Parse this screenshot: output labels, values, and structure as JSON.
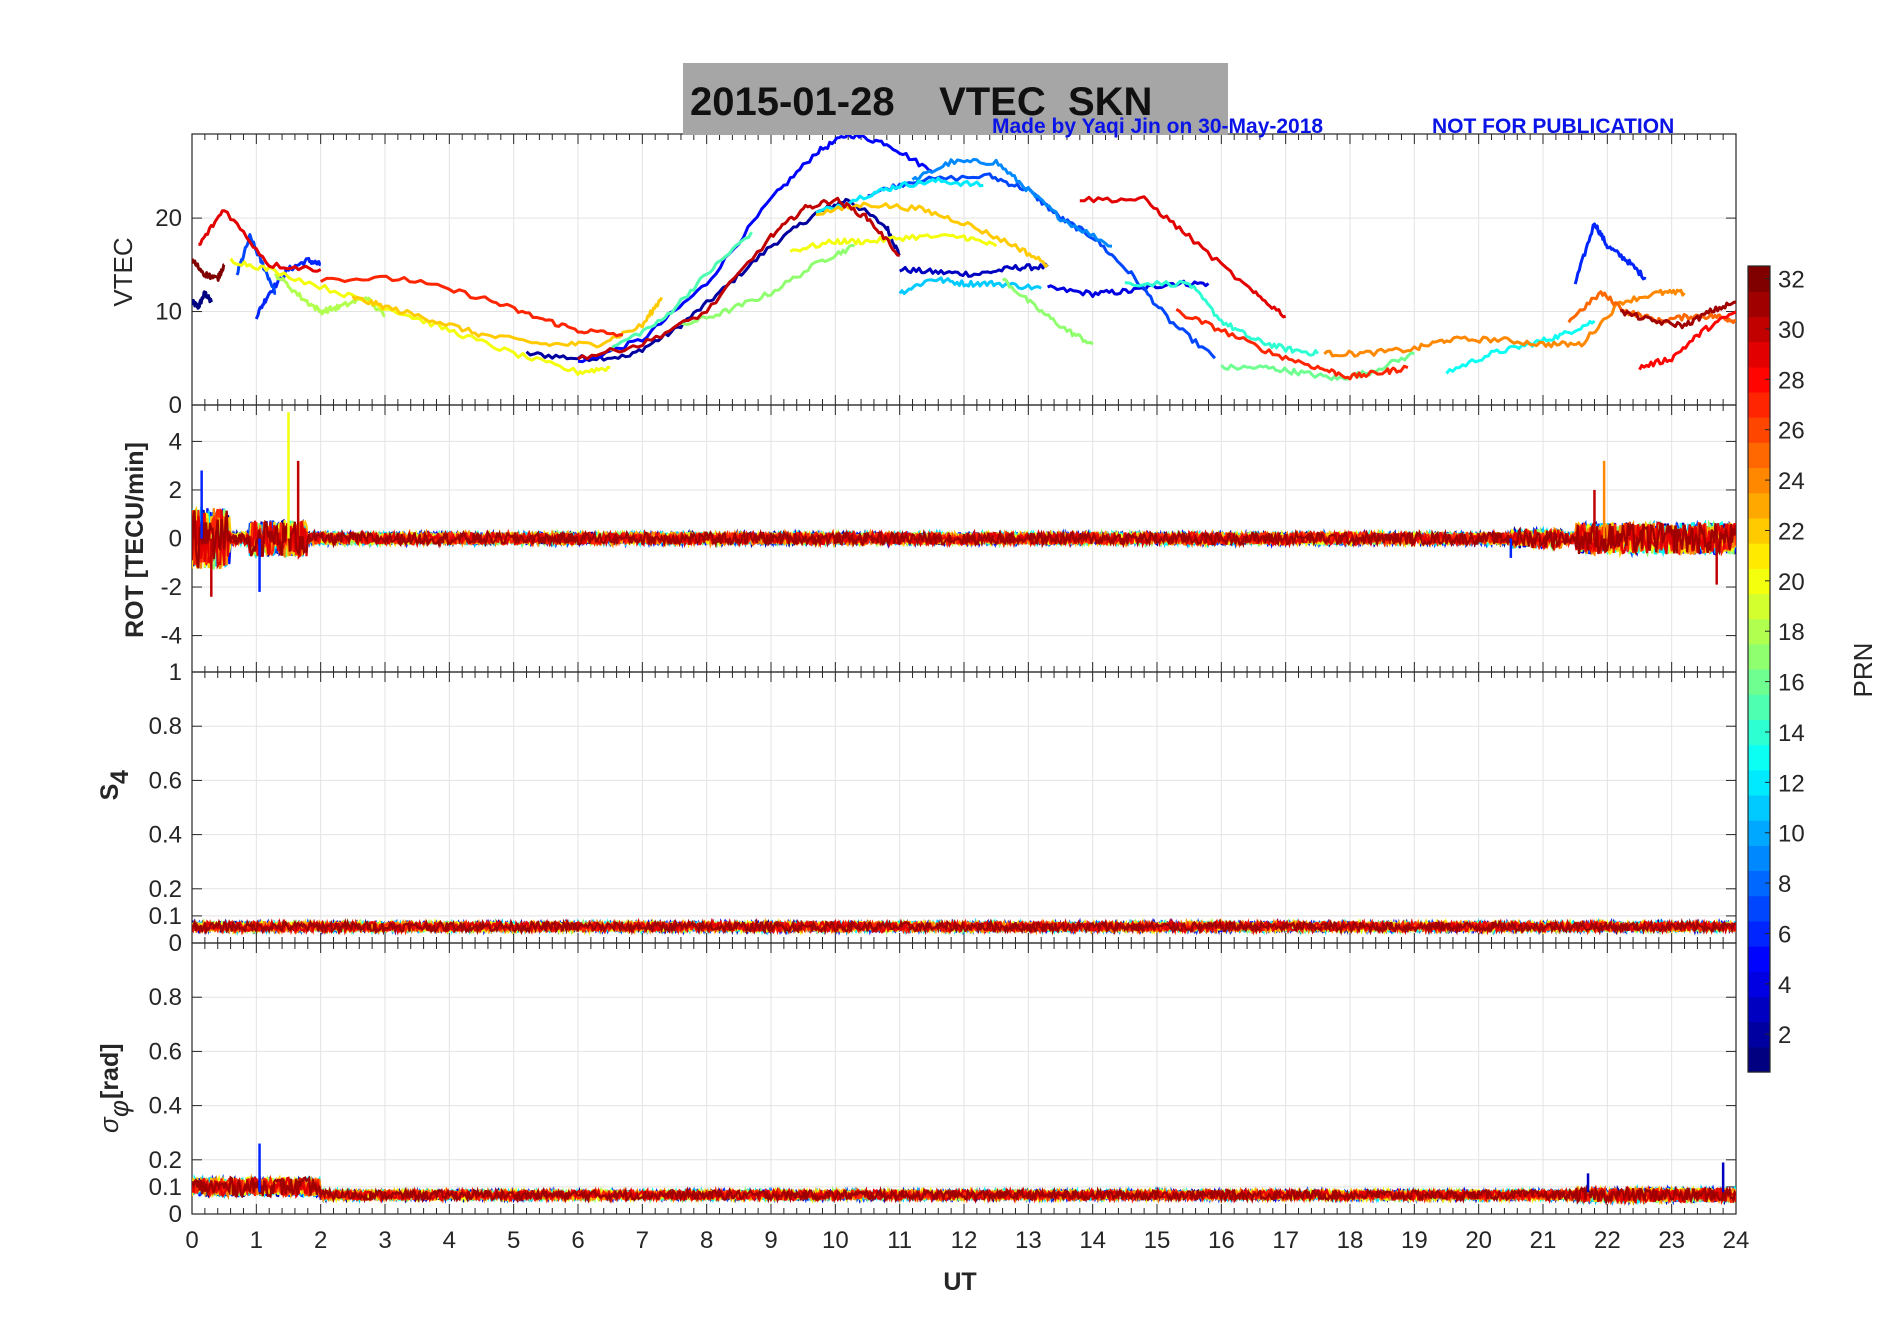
{
  "title": "2015-01-28    VTEC  SKN",
  "credit": "Made by Yaqi Jin on 30-May-2018",
  "notice": "NOT FOR PUBLICATION",
  "colors": {
    "title_bg": "#a6a6a6",
    "credit": "#0a14e6",
    "grid": "#e3e3e3",
    "axis": "#262626"
  },
  "chart_data": [
    {
      "type": "line",
      "panel": "vtec",
      "ylabel": "VTEC",
      "xlim": [
        0,
        24
      ],
      "ylim": [
        0,
        29
      ],
      "yticks": [
        0,
        10,
        20
      ],
      "grid": true,
      "color_by": "PRN",
      "series": [
        {
          "prn": 1,
          "x": [
            0,
            0.1,
            0.2,
            0.3
          ],
          "y": [
            11,
            10.5,
            12,
            11
          ]
        },
        {
          "prn": 2,
          "x": [
            5.2,
            6,
            6.8,
            7.5,
            8.2,
            9,
            9.7,
            10.2,
            10.8,
            11.0
          ],
          "y": [
            5.5,
            5,
            5.2,
            8,
            12,
            17,
            20.5,
            22,
            19,
            16
          ]
        },
        {
          "prn": 3,
          "x": [
            11,
            11.6,
            12.2,
            12.8,
            13.3
          ],
          "y": [
            14.5,
            14.2,
            14,
            14.7,
            14.8
          ]
        },
        {
          "prn": 4,
          "x": [
            13.3,
            14,
            14.6,
            15.2,
            15.8
          ],
          "y": [
            12.5,
            11.9,
            12.2,
            13,
            13
          ]
        },
        {
          "prn": 5,
          "x": [
            6,
            7,
            8,
            9,
            9.7,
            10.2,
            10.8,
            11.5
          ],
          "y": [
            4.5,
            7,
            13,
            22,
            27,
            29,
            28,
            25
          ]
        },
        {
          "prn": 6,
          "x": [
            1.0,
            1.2,
            1.5,
            1.8,
            2.0
          ],
          "y": [
            9.5,
            12,
            14.5,
            15.5,
            15
          ]
        },
        {
          "prn": 6,
          "x": [
            21.5,
            21.8,
            22,
            22.3,
            22.6
          ],
          "y": [
            13,
            19.5,
            17,
            15.5,
            13.5
          ]
        },
        {
          "prn": 7,
          "x": [
            10.5,
            11.2,
            12.4,
            13,
            13.5,
            14,
            14.6,
            15.2,
            15.9
          ],
          "y": [
            22.5,
            24,
            24.5,
            23,
            20,
            18,
            14,
            9,
            5
          ]
        },
        {
          "prn": 7,
          "x": [
            0.7,
            0.9,
            1.1,
            1.3
          ],
          "y": [
            14,
            18,
            15,
            12
          ]
        },
        {
          "prn": 9,
          "x": [
            11.2,
            11.8,
            12.5,
            13,
            13.5,
            14.3
          ],
          "y": [
            24,
            26,
            26,
            23,
            20,
            17
          ]
        },
        {
          "prn": 11,
          "x": [
            11,
            11.5,
            12,
            12.5,
            13.2
          ],
          "y": [
            12,
            13.5,
            13,
            13,
            12.5
          ]
        },
        {
          "prn": 12,
          "x": [
            9.7,
            10.5,
            11,
            11.6,
            12.3
          ],
          "y": [
            20.5,
            22.5,
            23.5,
            24,
            23.5
          ]
        },
        {
          "prn": 13,
          "x": [
            19.5,
            20.2,
            20.8,
            21.3,
            21.8
          ],
          "y": [
            3.5,
            5.5,
            6.5,
            7.5,
            9
          ]
        },
        {
          "prn": 14,
          "x": [
            14.5,
            15.5,
            16,
            16.5,
            17,
            17.5
          ],
          "y": [
            13,
            13,
            9,
            7,
            6,
            5.5
          ]
        },
        {
          "prn": 15,
          "x": [
            6.5,
            7.3,
            8,
            8.7
          ],
          "y": [
            6,
            9,
            14,
            18.5
          ]
        },
        {
          "prn": 16,
          "x": [
            16,
            16.7,
            17.2,
            17.8,
            18.3,
            19
          ],
          "y": [
            4,
            4,
            3.5,
            2.8,
            3.5,
            5.5
          ]
        },
        {
          "prn": 17,
          "x": [
            12.6,
            13.1,
            13.6,
            14
          ],
          "y": [
            13.5,
            10.5,
            8,
            6.5
          ]
        },
        {
          "prn": 17,
          "x": [
            7.6,
            8.3,
            9,
            9.8,
            10.3
          ],
          "y": [
            8.5,
            10,
            12,
            15.5,
            17
          ]
        },
        {
          "prn": 18,
          "x": [
            1.3,
            1.7,
            2.0,
            2.3,
            2.7,
            3.0
          ],
          "y": [
            14,
            11.5,
            10,
            10.5,
            11.5,
            9.5
          ]
        },
        {
          "prn": 20,
          "x": [
            0.6,
            1.2,
            2.3,
            3.2,
            4,
            5,
            6,
            6.5
          ],
          "y": [
            15.5,
            14.5,
            12,
            10,
            8,
            5.5,
            3.5,
            4
          ]
        },
        {
          "prn": 20,
          "x": [
            9.3,
            10,
            10.5,
            11.2,
            12,
            12.5
          ],
          "y": [
            16.5,
            17.5,
            17.5,
            18,
            18,
            17
          ]
        },
        {
          "prn": 22,
          "x": [
            2.5,
            3,
            3.8,
            4.5,
            5.5,
            6.3,
            7,
            7.3
          ],
          "y": [
            11.5,
            10.5,
            9,
            7.5,
            6.5,
            6.5,
            8.5,
            11.5
          ]
        },
        {
          "prn": 22,
          "x": [
            9.7,
            10.5,
            11.3,
            12,
            12.8,
            13.3
          ],
          "y": [
            20.5,
            21.5,
            21,
            19.5,
            17,
            15
          ]
        },
        {
          "prn": 24,
          "x": [
            17.6,
            18.2,
            19,
            19.5,
            20.3,
            21,
            21.6,
            22.2,
            22.8,
            23.2
          ],
          "y": [
            5.5,
            5.5,
            6,
            7,
            7,
            6.5,
            6.5,
            11,
            12,
            12
          ]
        },
        {
          "prn": 25,
          "x": [
            21.4,
            21.9,
            22.3,
            22.8,
            23.3,
            23.7,
            24
          ],
          "y": [
            9,
            12,
            10,
            9,
            9.5,
            9.5,
            9
          ]
        },
        {
          "prn": 27,
          "x": [
            2.0,
            3.3,
            4.5,
            5.3,
            6.0,
            6.7
          ],
          "y": [
            13.5,
            13.5,
            11.5,
            9.5,
            8,
            7.5
          ]
        },
        {
          "prn": 27,
          "x": [
            15.3,
            16,
            16.8,
            17.5,
            18,
            18.5,
            18.9
          ],
          "y": [
            10,
            8,
            5.5,
            4,
            3,
            3.5,
            4
          ]
        },
        {
          "prn": 28,
          "x": [
            22.5,
            23,
            23.5,
            24
          ],
          "y": [
            4,
            5,
            8,
            10
          ]
        },
        {
          "prn": 29,
          "x": [
            0.1,
            0.5,
            1.2,
            2.0
          ],
          "y": [
            17,
            21,
            15,
            14.5
          ]
        },
        {
          "prn": 29,
          "x": [
            13.8,
            14.8,
            15.5,
            16.5,
            17.0
          ],
          "y": [
            22,
            22,
            18,
            12,
            9.5
          ]
        },
        {
          "prn": 30,
          "x": [
            6,
            7,
            8,
            9,
            9.5,
            10,
            10.5,
            11
          ],
          "y": [
            5,
            6.5,
            10,
            18,
            21,
            22,
            20,
            16
          ]
        },
        {
          "prn": 31,
          "x": [
            22.2,
            22.7,
            23.2,
            23.6,
            24
          ],
          "y": [
            10,
            9,
            8.5,
            10,
            11
          ]
        },
        {
          "prn": 32,
          "x": [
            0,
            0.2,
            0.4,
            0.5
          ],
          "y": [
            15.5,
            14,
            13.5,
            15
          ]
        }
      ]
    },
    {
      "type": "line",
      "panel": "rot",
      "ylabel": "ROT [TECU/min]",
      "xlim": [
        0,
        24
      ],
      "ylim": [
        -5.5,
        5.5
      ],
      "yticks": [
        -4,
        -2,
        0,
        2,
        4
      ],
      "grid": true,
      "description_values": {
        "baseline": 0,
        "max_spike": 5.2,
        "min_spike": -2.4
      },
      "spikes": [
        {
          "x": 0.15,
          "y": 2.8
        },
        {
          "x": 0.3,
          "y": -2.4
        },
        {
          "x": 1.5,
          "y": 5.2
        },
        {
          "x": 1.65,
          "y": 3.2
        },
        {
          "x": 1.05,
          "y": -2.2
        },
        {
          "x": 21.8,
          "y": 2.0
        },
        {
          "x": 21.95,
          "y": 3.2
        },
        {
          "x": 23.7,
          "y": -1.9
        },
        {
          "x": 20.5,
          "y": -0.8
        }
      ]
    },
    {
      "type": "line",
      "panel": "s4",
      "ylabel": "S4",
      "xlim": [
        0,
        24
      ],
      "ylim": [
        0,
        1
      ],
      "yticks": [
        0,
        0.1,
        0.2,
        0.4,
        0.6,
        0.8,
        1
      ],
      "grid": true,
      "typical_value": 0.06
    },
    {
      "type": "line",
      "panel": "sigma_phi",
      "ylabel": "σφ [rad]",
      "xlim": [
        0,
        24
      ],
      "ylim": [
        0,
        1
      ],
      "yticks": [
        0,
        0.1,
        0.2,
        0.4,
        0.6,
        0.8
      ],
      "grid": true,
      "typical_value": 0.07,
      "xlabel": "UT",
      "xticks": [
        0,
        1,
        2,
        3,
        4,
        5,
        6,
        7,
        8,
        9,
        10,
        11,
        12,
        13,
        14,
        15,
        16,
        17,
        18,
        19,
        20,
        21,
        22,
        23,
        24
      ],
      "peaks": [
        {
          "x": 1.05,
          "y": 0.26
        },
        {
          "x": 21.7,
          "y": 0.15
        },
        {
          "x": 23.8,
          "y": 0.19
        }
      ]
    }
  ],
  "colorbar": {
    "label": "PRN",
    "range": [
      1,
      32
    ],
    "ticks": [
      2,
      4,
      6,
      8,
      10,
      12,
      14,
      16,
      18,
      20,
      22,
      24,
      26,
      28,
      30,
      32
    ],
    "colormap": "jet"
  }
}
